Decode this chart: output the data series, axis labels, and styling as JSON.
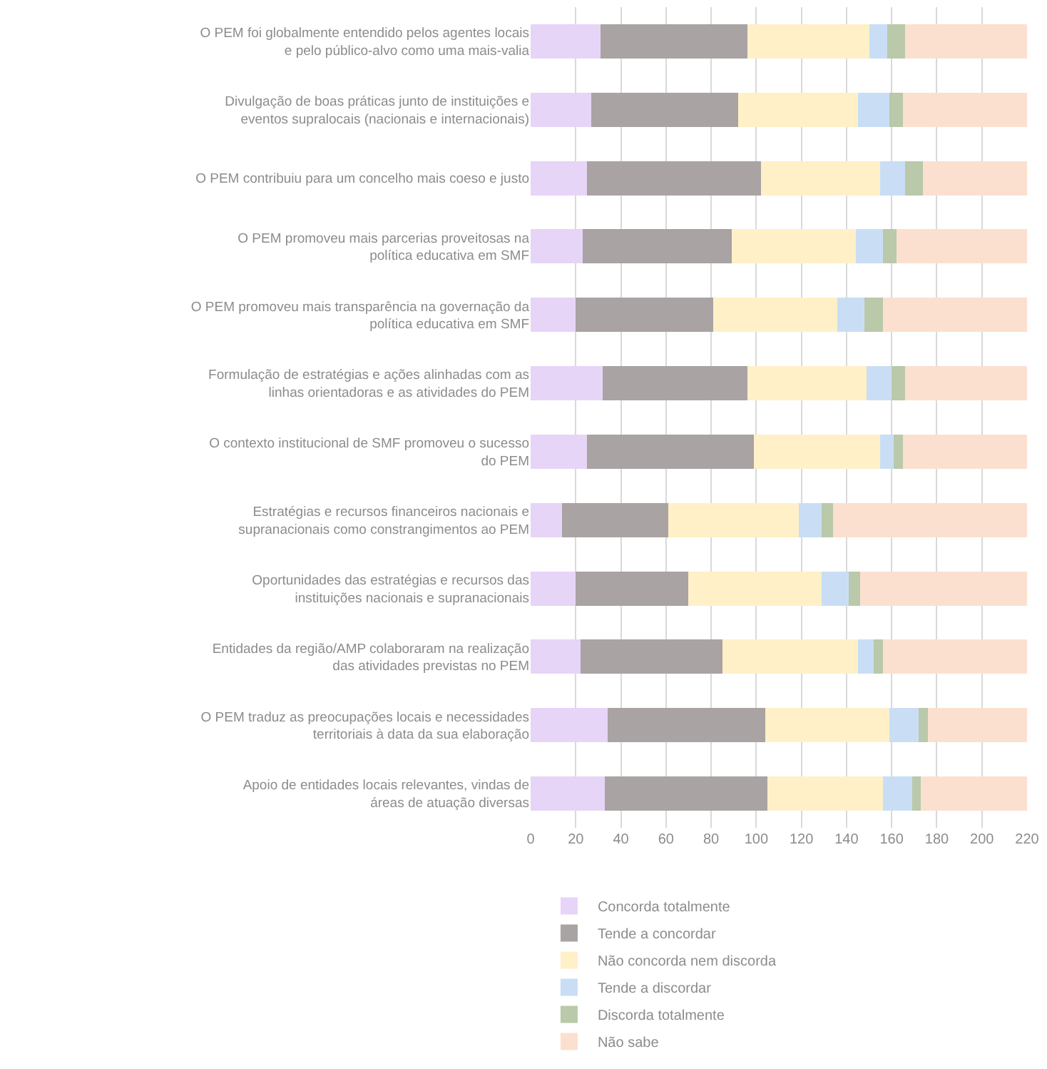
{
  "chart_data": {
    "type": "bar",
    "orientation": "horizontal",
    "stacked": true,
    "categories": [
      "O PEM foi globalmente entendido pelos agentes locais e pelo público-alvo como uma mais-valia",
      "Divulgação de boas práticas junto de instituições e eventos supralocais (nacionais e internacionais)",
      "O PEM contribuiu para um concelho mais coeso e justo",
      "O PEM promoveu mais parcerias proveitosas na política educativa em SMF",
      "O PEM promoveu mais transparência na governação da política educativa em SMF",
      "Formulação de estratégias e ações alinhadas com as linhas orientadoras e as atividades do PEM",
      "O contexto institucional de SMF promoveu o sucesso do PEM",
      "Estratégias e recursos financeiros nacionais e supranacionais como constrangimentos ao PEM",
      "Oportunidades das estratégias e recursos das instituições nacionais e supranacionais",
      "Entidades da região/AMP colaboraram na realização das atividades previstas no PEM",
      "O PEM traduz as preocupações locais e necessidades territoriais à data da sua elaboração",
      "Apoio de entidades locais relevantes, vindas de áreas de atuação diversas"
    ],
    "series": [
      {
        "name": "Concorda totalmente",
        "color": "#e6d5f7",
        "values": [
          31,
          27,
          25,
          23,
          20,
          32,
          25,
          14,
          20,
          22,
          34,
          33
        ]
      },
      {
        "name": "Tende a concordar",
        "color": "#a9a3a3",
        "values": [
          65,
          65,
          77,
          66,
          61,
          64,
          74,
          47,
          50,
          63,
          70,
          72
        ]
      },
      {
        "name": "Não concorda nem discorda",
        "color": "#fff0c8",
        "values": [
          54,
          53,
          53,
          55,
          55,
          53,
          56,
          58,
          59,
          60,
          55,
          51
        ]
      },
      {
        "name": "Tende a discordar",
        "color": "#c9def5",
        "values": [
          8,
          14,
          11,
          12,
          12,
          11,
          6,
          10,
          12,
          7,
          13,
          13
        ]
      },
      {
        "name": "Discorda totalmente",
        "color": "#b9c9aa",
        "values": [
          8,
          6,
          8,
          6,
          8,
          6,
          4,
          5,
          5,
          4,
          4,
          4
        ]
      },
      {
        "name": "Não sabe",
        "color": "#fbe0d0",
        "values": [
          54,
          55,
          46,
          58,
          64,
          54,
          55,
          86,
          74,
          64,
          44,
          47
        ]
      }
    ],
    "xlim": [
      0,
      220
    ],
    "xticks": [
      0,
      20,
      40,
      60,
      80,
      100,
      120,
      140,
      160,
      180,
      200,
      220
    ],
    "grid": "x",
    "legend": "bottom"
  }
}
